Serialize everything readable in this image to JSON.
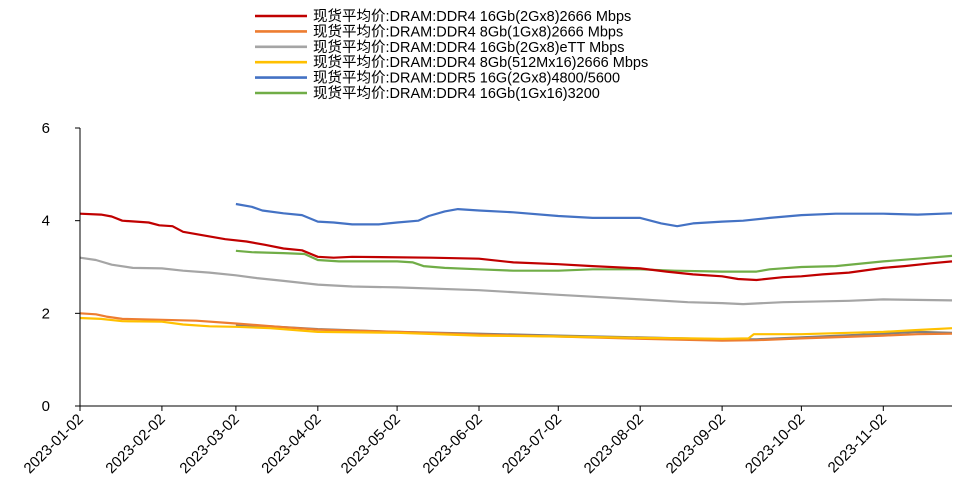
{
  "chart_data": {
    "type": "line",
    "title": "",
    "xlabel": "",
    "ylabel": "",
    "ylim": [
      0,
      6
    ],
    "yticks": [
      0,
      2,
      4,
      6
    ],
    "xlim": [
      "2023-01-02",
      "2023-11-28"
    ],
    "xticks": [
      "2023-01-02",
      "2023-02-02",
      "2023-03-02",
      "2023-04-02",
      "2023-05-02",
      "2023-06-02",
      "2023-07-02",
      "2023-08-02",
      "2023-09-02",
      "2023-10-02",
      "2023-11-02"
    ],
    "grid": false,
    "legend_position": "top",
    "series": [
      {
        "name": "现货平均价:DRAM:DDR4 16Gb(2Gx8)2666 Mbps",
        "color": "#c00000",
        "points": [
          [
            "2023-01-02",
            4.15
          ],
          [
            "2023-01-10",
            4.13
          ],
          [
            "2023-01-14",
            4.09
          ],
          [
            "2023-01-18",
            4.0
          ],
          [
            "2023-01-28",
            3.96
          ],
          [
            "2023-02-01",
            3.9
          ],
          [
            "2023-02-06",
            3.88
          ],
          [
            "2023-02-10",
            3.76
          ],
          [
            "2023-02-20",
            3.66
          ],
          [
            "2023-02-26",
            3.6
          ],
          [
            "2023-03-06",
            3.55
          ],
          [
            "2023-03-13",
            3.48
          ],
          [
            "2023-03-20",
            3.4
          ],
          [
            "2023-03-27",
            3.36
          ],
          [
            "2023-04-02",
            3.22
          ],
          [
            "2023-04-08",
            3.2
          ],
          [
            "2023-04-15",
            3.22
          ],
          [
            "2023-05-15",
            3.2
          ],
          [
            "2023-06-02",
            3.18
          ],
          [
            "2023-06-15",
            3.1
          ],
          [
            "2023-07-02",
            3.06
          ],
          [
            "2023-07-15",
            3.02
          ],
          [
            "2023-08-02",
            2.97
          ],
          [
            "2023-08-12",
            2.9
          ],
          [
            "2023-08-22",
            2.84
          ],
          [
            "2023-09-02",
            2.8
          ],
          [
            "2023-09-08",
            2.74
          ],
          [
            "2023-09-15",
            2.72
          ],
          [
            "2023-09-25",
            2.78
          ],
          [
            "2023-10-02",
            2.8
          ],
          [
            "2023-10-10",
            2.84
          ],
          [
            "2023-10-20",
            2.88
          ],
          [
            "2023-11-02",
            2.98
          ],
          [
            "2023-11-10",
            3.02
          ],
          [
            "2023-11-20",
            3.08
          ],
          [
            "2023-11-28",
            3.12
          ]
        ]
      },
      {
        "name": "现货平均价:DRAM:DDR4 8Gb(1Gx8)2666 Mbps",
        "color": "#ed7d31",
        "points": [
          [
            "2023-01-02",
            2.0
          ],
          [
            "2023-01-08",
            1.98
          ],
          [
            "2023-01-12",
            1.93
          ],
          [
            "2023-01-18",
            1.88
          ],
          [
            "2023-02-02",
            1.86
          ],
          [
            "2023-02-15",
            1.84
          ],
          [
            "2023-03-02",
            1.78
          ],
          [
            "2023-03-20",
            1.7
          ],
          [
            "2023-04-02",
            1.65
          ],
          [
            "2023-05-02",
            1.6
          ],
          [
            "2023-06-02",
            1.54
          ],
          [
            "2023-07-02",
            1.5
          ],
          [
            "2023-08-02",
            1.45
          ],
          [
            "2023-09-02",
            1.41
          ],
          [
            "2023-09-15",
            1.42
          ],
          [
            "2023-10-02",
            1.46
          ],
          [
            "2023-11-02",
            1.52
          ],
          [
            "2023-11-15",
            1.55
          ],
          [
            "2023-11-28",
            1.56
          ]
        ]
      },
      {
        "name": "现货平均价:DRAM:DDR4 16Gb(2Gx8)eTT Mbps",
        "color": "#a5a5a5",
        "points": [
          [
            "2023-01-02",
            3.2
          ],
          [
            "2023-01-08",
            3.15
          ],
          [
            "2023-01-14",
            3.05
          ],
          [
            "2023-01-22",
            2.98
          ],
          [
            "2023-02-02",
            2.97
          ],
          [
            "2023-02-10",
            2.92
          ],
          [
            "2023-02-20",
            2.88
          ],
          [
            "2023-03-02",
            2.82
          ],
          [
            "2023-03-10",
            2.76
          ],
          [
            "2023-03-20",
            2.7
          ],
          [
            "2023-04-02",
            2.62
          ],
          [
            "2023-04-15",
            2.58
          ],
          [
            "2023-05-02",
            2.56
          ],
          [
            "2023-06-02",
            2.5
          ],
          [
            "2023-07-02",
            2.4
          ],
          [
            "2023-08-02",
            2.3
          ],
          [
            "2023-08-20",
            2.24
          ],
          [
            "2023-09-02",
            2.22
          ],
          [
            "2023-09-10",
            2.2
          ],
          [
            "2023-09-25",
            2.24
          ],
          [
            "2023-10-02",
            2.25
          ],
          [
            "2023-10-20",
            2.27
          ],
          [
            "2023-11-02",
            2.3
          ],
          [
            "2023-11-28",
            2.28
          ]
        ]
      },
      {
        "name": "现货平均价:DRAM:DDR4 8Gb(512Mx16)2666 Mbps",
        "color": "#ffc000",
        "points": [
          [
            "2023-01-02",
            1.9
          ],
          [
            "2023-01-10",
            1.88
          ],
          [
            "2023-01-18",
            1.83
          ],
          [
            "2023-02-02",
            1.82
          ],
          [
            "2023-02-10",
            1.76
          ],
          [
            "2023-02-20",
            1.72
          ],
          [
            "2023-03-02",
            1.71
          ],
          [
            "2023-03-15",
            1.68
          ],
          [
            "2023-04-02",
            1.6
          ],
          [
            "2023-05-02",
            1.58
          ],
          [
            "2023-06-02",
            1.52
          ],
          [
            "2023-07-02",
            1.5
          ],
          [
            "2023-08-02",
            1.47
          ],
          [
            "2023-08-20",
            1.46
          ],
          [
            "2023-09-02",
            1.45
          ],
          [
            "2023-09-12",
            1.46
          ],
          [
            "2023-09-14",
            1.55
          ],
          [
            "2023-10-02",
            1.55
          ],
          [
            "2023-10-20",
            1.58
          ],
          [
            "2023-11-02",
            1.6
          ],
          [
            "2023-11-15",
            1.64
          ],
          [
            "2023-11-28",
            1.68
          ]
        ]
      },
      {
        "name": "现货平均价:DRAM:DDR5 16G(2Gx8)4800/5600",
        "color": "#4472c4",
        "points": [
          [
            "2023-03-02",
            4.36
          ],
          [
            "2023-03-08",
            4.3
          ],
          [
            "2023-03-12",
            4.22
          ],
          [
            "2023-03-20",
            4.16
          ],
          [
            "2023-03-27",
            4.12
          ],
          [
            "2023-04-02",
            3.98
          ],
          [
            "2023-04-08",
            3.96
          ],
          [
            "2023-04-15",
            3.92
          ],
          [
            "2023-04-25",
            3.92
          ],
          [
            "2023-05-02",
            3.96
          ],
          [
            "2023-05-10",
            4.0
          ],
          [
            "2023-05-14",
            4.1
          ],
          [
            "2023-05-20",
            4.2
          ],
          [
            "2023-05-25",
            4.25
          ],
          [
            "2023-06-02",
            4.22
          ],
          [
            "2023-06-15",
            4.18
          ],
          [
            "2023-07-02",
            4.1
          ],
          [
            "2023-07-15",
            4.06
          ],
          [
            "2023-08-02",
            4.06
          ],
          [
            "2023-08-10",
            3.94
          ],
          [
            "2023-08-16",
            3.88
          ],
          [
            "2023-08-22",
            3.94
          ],
          [
            "2023-09-02",
            3.98
          ],
          [
            "2023-09-10",
            4.0
          ],
          [
            "2023-09-20",
            4.06
          ],
          [
            "2023-10-02",
            4.12
          ],
          [
            "2023-10-15",
            4.15
          ],
          [
            "2023-11-02",
            4.15
          ],
          [
            "2023-11-15",
            4.13
          ],
          [
            "2023-11-28",
            4.16
          ]
        ]
      },
      {
        "name": "现货平均价:DRAM:DDR4 16Gb(1Gx16)3200",
        "color": "#70ad47",
        "points": [
          [
            "2023-03-02",
            3.35
          ],
          [
            "2023-03-08",
            3.32
          ],
          [
            "2023-03-20",
            3.3
          ],
          [
            "2023-03-28",
            3.28
          ],
          [
            "2023-04-02",
            3.15
          ],
          [
            "2023-04-10",
            3.12
          ],
          [
            "2023-05-02",
            3.12
          ],
          [
            "2023-05-08",
            3.1
          ],
          [
            "2023-05-12",
            3.02
          ],
          [
            "2023-05-20",
            2.98
          ],
          [
            "2023-06-02",
            2.95
          ],
          [
            "2023-06-15",
            2.92
          ],
          [
            "2023-07-02",
            2.92
          ],
          [
            "2023-07-15",
            2.95
          ],
          [
            "2023-08-02",
            2.95
          ],
          [
            "2023-08-15",
            2.92
          ],
          [
            "2023-09-02",
            2.9
          ],
          [
            "2023-09-15",
            2.9
          ],
          [
            "2023-09-20",
            2.95
          ],
          [
            "2023-10-02",
            3.0
          ],
          [
            "2023-10-15",
            3.02
          ],
          [
            "2023-11-02",
            3.12
          ],
          [
            "2023-11-15",
            3.18
          ],
          [
            "2023-11-28",
            3.24
          ]
        ]
      },
      {
        "name": "",
        "color": "#7f7f7f",
        "points": [
          [
            "2023-03-02",
            1.75
          ],
          [
            "2023-03-15",
            1.72
          ],
          [
            "2023-04-02",
            1.66
          ],
          [
            "2023-05-02",
            1.6
          ],
          [
            "2023-06-02",
            1.56
          ],
          [
            "2023-07-02",
            1.52
          ],
          [
            "2023-08-02",
            1.48
          ],
          [
            "2023-09-02",
            1.44
          ],
          [
            "2023-09-15",
            1.44
          ],
          [
            "2023-10-02",
            1.48
          ],
          [
            "2023-11-02",
            1.56
          ],
          [
            "2023-11-15",
            1.6
          ],
          [
            "2023-11-28",
            1.58
          ]
        ]
      }
    ]
  }
}
